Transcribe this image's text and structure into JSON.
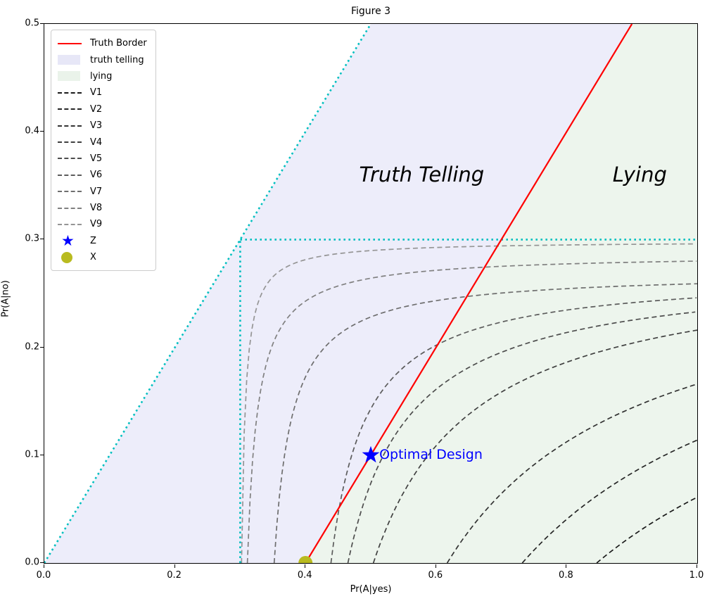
{
  "title": "Figure 3",
  "axes": {
    "xlabel": "Pr(A|yes)",
    "ylabel": "Pr(A|no)",
    "x_ticks": [
      "0.0",
      "0.2",
      "0.4",
      "0.6",
      "0.8",
      "1.0"
    ],
    "y_ticks": [
      "0.0",
      "0.1",
      "0.2",
      "0.3",
      "0.4",
      "0.5"
    ],
    "xlim": [
      0,
      1.0
    ],
    "ylim": [
      0,
      0.5
    ],
    "grid": false
  },
  "legend": {
    "position": "upper left",
    "items": [
      {
        "label": "Truth Border",
        "type": "line",
        "color": "#ff0000"
      },
      {
        "label": "truth telling",
        "type": "patch",
        "color": "#e7e7f7"
      },
      {
        "label": "lying",
        "type": "patch",
        "color": "#eaf3ea"
      },
      {
        "label": "V1",
        "type": "dash",
        "color": "#1a1a1a"
      },
      {
        "label": "V2",
        "type": "dash",
        "color": "#262626"
      },
      {
        "label": "V3",
        "type": "dash",
        "color": "#333333"
      },
      {
        "label": "V4",
        "type": "dash",
        "color": "#404040"
      },
      {
        "label": "V5",
        "type": "dash",
        "color": "#4d4d4d"
      },
      {
        "label": "V6",
        "type": "dash",
        "color": "#5c5c5c"
      },
      {
        "label": "V7",
        "type": "dash",
        "color": "#6e6e6e"
      },
      {
        "label": "V8",
        "type": "dash",
        "color": "#808080"
      },
      {
        "label": "V9",
        "type": "dash",
        "color": "#959595"
      },
      {
        "label": "Z",
        "type": "star",
        "color": "#0000ff"
      },
      {
        "label": "X",
        "type": "dot",
        "color": "#b9bb20"
      }
    ]
  },
  "chart_data": {
    "type": "line",
    "title": "Figure 3",
    "xlabel": "Pr(A|yes)",
    "ylabel": "Pr(A|no)",
    "xlim": [
      0,
      1.0
    ],
    "ylim": [
      0,
      0.5
    ],
    "regions": {
      "truth_telling": {
        "label": "truth telling",
        "polygon": [
          [
            0,
            0
          ],
          [
            0.5,
            0.5
          ],
          [
            0.9,
            0.5
          ],
          [
            0.4,
            0
          ]
        ],
        "fill": "#ededfa"
      },
      "lying": {
        "label": "lying",
        "polygon": [
          [
            0.4,
            0
          ],
          [
            0.9,
            0.5
          ],
          [
            1.0,
            0.5
          ],
          [
            1.0,
            0
          ]
        ],
        "fill": "#edf5ed"
      }
    },
    "truth_border": {
      "label": "Truth Border",
      "from": [
        0.4,
        0.0
      ],
      "to": [
        0.9,
        0.5
      ],
      "color": "#ff0000"
    },
    "cyan_guides": {
      "color": "#00bfbf",
      "segments": [
        {
          "name": "diagonal-y-equals-x",
          "from": [
            0.0,
            0.0
          ],
          "to": [
            0.5,
            0.5
          ]
        },
        {
          "name": "horizontal-at-0.3",
          "from": [
            0.3,
            0.3
          ],
          "to": [
            1.0,
            0.3
          ]
        },
        {
          "name": "vertical-at-0.3",
          "from": [
            0.3,
            0.0
          ],
          "to": [
            0.3,
            0.3
          ]
        }
      ]
    },
    "contours": [
      {
        "name": "V1",
        "color": "#1a1a1a",
        "x_at_y0": 0.846,
        "y_at_x1": 0.061,
        "v_asymptote": 0.3
      },
      {
        "name": "V2",
        "color": "#262626",
        "x_at_y0": 0.732,
        "y_at_x1": 0.114,
        "v_asymptote": 0.3
      },
      {
        "name": "V3",
        "color": "#333333",
        "x_at_y0": 0.617,
        "y_at_x1": 0.166,
        "v_asymptote": 0.32
      },
      {
        "name": "V4",
        "color": "#404040",
        "x_at_y0": 0.504,
        "y_at_x1": 0.216,
        "v_asymptote": 0.35
      },
      {
        "name": "V5",
        "color": "#4d4d4d",
        "x_at_y0": 0.465,
        "y_at_x1": 0.233,
        "v_asymptote": 0.37
      },
      {
        "name": "V6",
        "color": "#5c5c5c",
        "x_at_y0": 0.439,
        "y_at_x1": 0.246,
        "v_asymptote": 0.385
      },
      {
        "name": "V7",
        "color": "#6e6e6e",
        "x_at_y0": 0.352,
        "y_at_x1": 0.259,
        "v_asymptote": 0.325
      },
      {
        "name": "V8",
        "color": "#808080",
        "x_at_y0": 0.311,
        "y_at_x1": 0.28,
        "v_asymptote": 0.295
      },
      {
        "name": "V9",
        "color": "#959595",
        "x_at_y0": 0.302,
        "y_at_x1": 0.296,
        "v_asymptote": 0.296
      }
    ],
    "markers": {
      "Z": {
        "label": "Z",
        "x": 0.5,
        "y": 0.1,
        "shape": "star",
        "color": "#0000ff"
      },
      "X": {
        "label": "X",
        "x": 0.4,
        "y": 0.0,
        "shape": "circle",
        "color": "#b9bb20"
      }
    },
    "annotations": [
      {
        "id": "truth_telling_text",
        "text": "Truth Telling",
        "x": 0.578,
        "y": 0.36,
        "style": "italic"
      },
      {
        "id": "lying_text",
        "text": "Lying",
        "x": 0.912,
        "y": 0.36,
        "style": "italic"
      },
      {
        "id": "optimal_design",
        "text": "Optimal Design",
        "x": 0.513,
        "y": 0.1,
        "color": "#0000ff"
      }
    ],
    "legend_entries": [
      "Truth Border",
      "truth telling",
      "lying",
      "V1",
      "V2",
      "V3",
      "V4",
      "V5",
      "V6",
      "V7",
      "V8",
      "V9",
      "Z",
      "X"
    ]
  }
}
